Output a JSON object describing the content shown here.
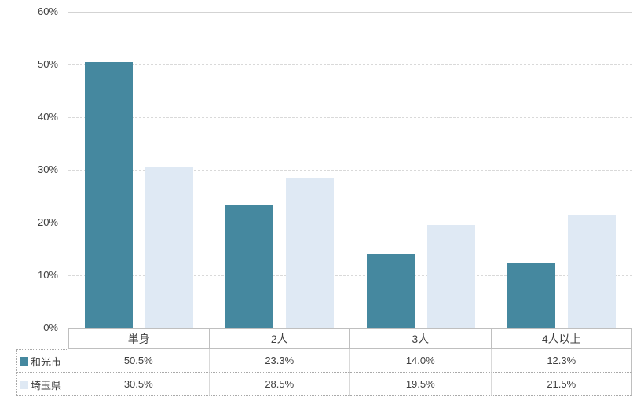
{
  "chart_data": {
    "type": "bar",
    "title": "",
    "xlabel": "",
    "ylabel": "",
    "categories": [
      "単身",
      "2人",
      "3人",
      "4人以上"
    ],
    "series": [
      {
        "name": "和光市",
        "values": [
          50.5,
          23.3,
          14.0,
          12.3
        ],
        "color": "#45889F"
      },
      {
        "name": "埼玉県",
        "values": [
          30.5,
          28.5,
          19.5,
          21.5
        ],
        "color": "#DFE9F4"
      }
    ],
    "table_values": [
      [
        "50.5%",
        "23.3%",
        "14.0%",
        "12.3%"
      ],
      [
        "30.5%",
        "28.5%",
        "19.5%",
        "21.5%"
      ]
    ],
    "ylim": [
      0,
      60
    ],
    "y_ticks": [
      "60%",
      "50%",
      "40%",
      "30%",
      "20%",
      "10%",
      "0%"
    ],
    "grid": true,
    "gridline_style": "dashed",
    "legend_position": "data-table-left"
  },
  "colors": {
    "background": "#ffffff",
    "gridline": "#d9d9d9",
    "table_border": "#bfbfbf",
    "text": "#3f3f3f"
  }
}
